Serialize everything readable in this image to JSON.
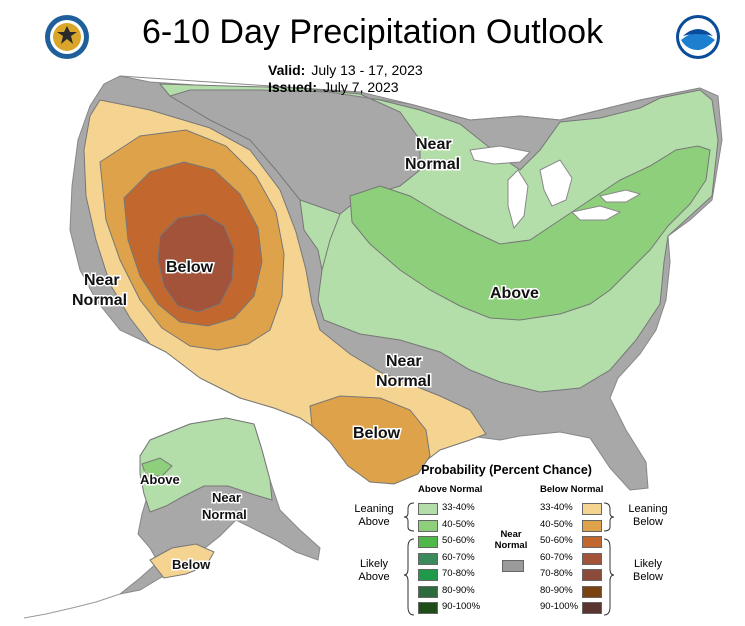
{
  "header": {
    "title": "6-10 Day Precipitation Outlook",
    "valid_label": "Valid:",
    "valid_value": "July 13 - 17, 2023",
    "issued_label": "Issued:",
    "issued_value": "July 7, 2023"
  },
  "logos": {
    "left": "department-of-commerce-seal",
    "right": "noaa-logo"
  },
  "map_labels": {
    "near_normal_north_line1": "Near",
    "near_normal_north_line2": "Normal",
    "near_normal_west_line1": "Near",
    "near_normal_west_line2": "Normal",
    "below_west": "Below",
    "above_east": "Above",
    "near_normal_south_line1": "Near",
    "near_normal_south_line2": "Normal",
    "below_texas": "Below",
    "alaska_above": "Above",
    "alaska_near_line1": "Near",
    "alaska_near_line2": "Normal",
    "alaska_below": "Below"
  },
  "legend": {
    "title": "Probability (Percent Chance)",
    "above_header": "Above Normal",
    "below_header": "Below Normal",
    "near_header_line1": "Near",
    "near_header_line2": "Normal",
    "leaning_above_line1": "Leaning",
    "leaning_above_line2": "Above",
    "likely_above_line1": "Likely",
    "likely_above_line2": "Above",
    "leaning_below_line1": "Leaning",
    "leaning_below_line2": "Below",
    "likely_below_line1": "Likely",
    "likely_below_line2": "Below",
    "above_bins": [
      {
        "label": "33-40%",
        "color": "#b3deaa"
      },
      {
        "label": "40-50%",
        "color": "#8ecf7c"
      },
      {
        "label": "50-60%",
        "color": "#4fb848"
      },
      {
        "label": "60-70%",
        "color": "#3a8a5c"
      },
      {
        "label": "70-80%",
        "color": "#1f9a4a"
      },
      {
        "label": "80-90%",
        "color": "#2d6a3e"
      },
      {
        "label": "90-100%",
        "color": "#1e4d1a"
      }
    ],
    "below_bins": [
      {
        "label": "33-40%",
        "color": "#f5d491"
      },
      {
        "label": "40-50%",
        "color": "#dda24a"
      },
      {
        "label": "50-60%",
        "color": "#c2682e"
      },
      {
        "label": "60-70%",
        "color": "#a4533b"
      },
      {
        "label": "70-80%",
        "color": "#8c4a3a"
      },
      {
        "label": "80-90%",
        "color": "#7a4412"
      },
      {
        "label": "90-100%",
        "color": "#5a3530"
      }
    ],
    "near_color": "#9a9a9a"
  },
  "colors": {
    "near_normal": "#a8a8a8",
    "above_33": "#b3deaa",
    "above_40": "#8ecf7c",
    "below_33": "#f5d491",
    "below_40": "#dda24a",
    "below_50": "#c2682e",
    "below_60": "#a4533b",
    "boundary": "#777777"
  }
}
